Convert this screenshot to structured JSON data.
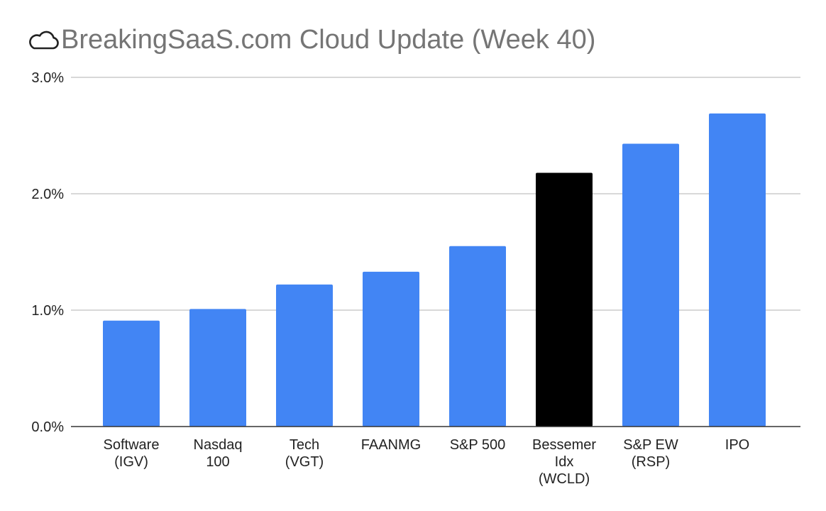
{
  "title": "BreakingSaaS.com Cloud Update (Week 40)",
  "title_icon": "cloud-icon",
  "colors": {
    "bar_default": "#4285F4",
    "bar_highlight": "#000000",
    "grid": "#cccccc",
    "baseline": "#333333",
    "title": "#757575",
    "text": "#222222"
  },
  "chart_data": {
    "type": "bar",
    "title": "BreakingSaaS.com Cloud Update (Week 40)",
    "xlabel": "",
    "ylabel": "",
    "ylim": [
      0,
      3.0
    ],
    "y_ticks": [
      0,
      1,
      2,
      3
    ],
    "y_tick_labels": [
      "0.0%",
      "1.0%",
      "2.0%",
      "3.0%"
    ],
    "grid": true,
    "legend": "none",
    "categories": [
      "Software (IGV)",
      "Nasdaq 100",
      "Tech (VGT)",
      "FAANMG",
      "S&P 500",
      "Bessemer Idx (WCLD)",
      "S&P EW (RSP)",
      "IPO"
    ],
    "category_label_lines": [
      [
        "Software",
        "(IGV)"
      ],
      [
        "Nasdaq",
        "100"
      ],
      [
        "Tech",
        "(VGT)"
      ],
      [
        "FAANMG"
      ],
      [
        "S&P 500"
      ],
      [
        "Bessemer",
        "Idx",
        "(WCLD)"
      ],
      [
        "S&P EW",
        "(RSP)"
      ],
      [
        "IPO"
      ]
    ],
    "values": [
      0.91,
      1.01,
      1.22,
      1.33,
      1.55,
      2.18,
      2.43,
      2.69
    ],
    "highlight_category": "Bessemer Idx (WCLD)"
  }
}
